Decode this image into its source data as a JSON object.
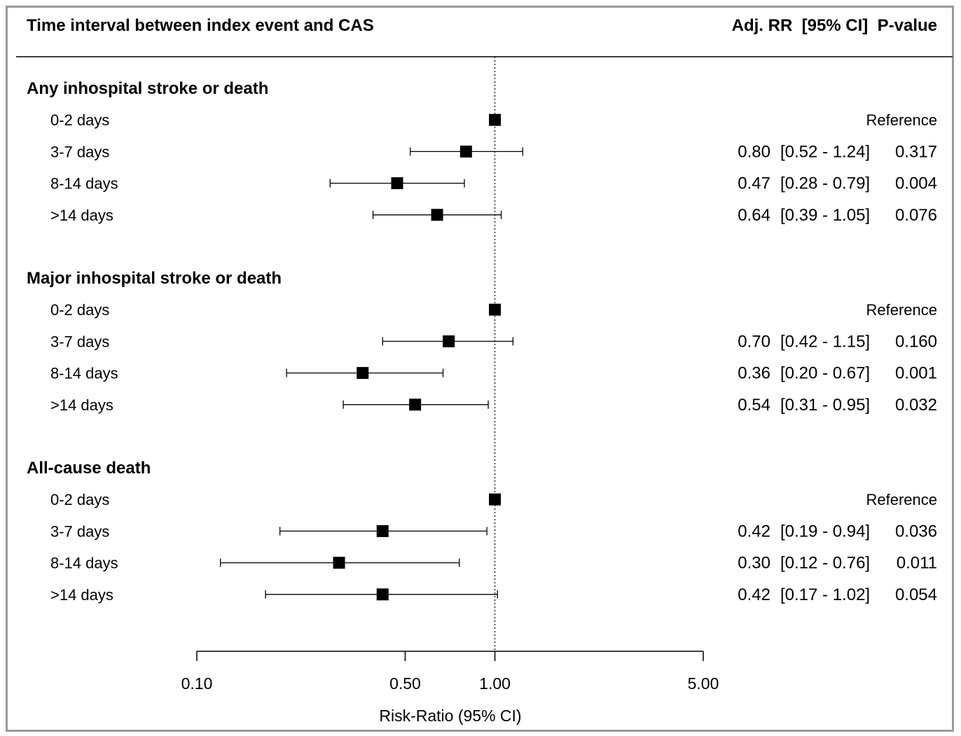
{
  "header": {
    "left_title": "Time interval between index event and CAS",
    "right_title": "Adj. RR  [95% CI]  P-value"
  },
  "chart_data": {
    "type": "forest",
    "scale": "log",
    "xlim": [
      0.1,
      5.0
    ],
    "reference_line": 1.0,
    "xticks": [
      {
        "value": 0.1,
        "label": "0.10"
      },
      {
        "value": 0.5,
        "label": "0.50"
      },
      {
        "value": 1.0,
        "label": "1.00"
      },
      {
        "value": 5.0,
        "label": "5.00"
      }
    ],
    "xlabel": "Risk-Ratio (95% CI)",
    "groups": [
      {
        "title": "Any inhospital stroke or death",
        "rows": [
          {
            "label": "0-2 days",
            "rr": 1.0,
            "lo": null,
            "hi": null,
            "rr_text": "",
            "ci_text": "",
            "p_text": "",
            "ref_text": "Reference"
          },
          {
            "label": "3-7 days",
            "rr": 0.8,
            "lo": 0.52,
            "hi": 1.24,
            "rr_text": "0.80",
            "ci_text": "[0.52 - 1.24]",
            "p_text": "0.317",
            "ref_text": ""
          },
          {
            "label": "8-14 days",
            "rr": 0.47,
            "lo": 0.28,
            "hi": 0.79,
            "rr_text": "0.47",
            "ci_text": "[0.28 - 0.79]",
            "p_text": "0.004",
            "ref_text": ""
          },
          {
            "label": ">14 days",
            "rr": 0.64,
            "lo": 0.39,
            "hi": 1.05,
            "rr_text": "0.64",
            "ci_text": "[0.39 - 1.05]",
            "p_text": "0.076",
            "ref_text": ""
          }
        ]
      },
      {
        "title": "Major inhospital stroke or death",
        "rows": [
          {
            "label": "0-2 days",
            "rr": 1.0,
            "lo": null,
            "hi": null,
            "rr_text": "",
            "ci_text": "",
            "p_text": "",
            "ref_text": "Reference"
          },
          {
            "label": "3-7 days",
            "rr": 0.7,
            "lo": 0.42,
            "hi": 1.15,
            "rr_text": "0.70",
            "ci_text": "[0.42 - 1.15]",
            "p_text": "0.160",
            "ref_text": ""
          },
          {
            "label": "8-14 days",
            "rr": 0.36,
            "lo": 0.2,
            "hi": 0.67,
            "rr_text": "0.36",
            "ci_text": "[0.20 - 0.67]",
            "p_text": "0.001",
            "ref_text": ""
          },
          {
            "label": ">14 days",
            "rr": 0.54,
            "lo": 0.31,
            "hi": 0.95,
            "rr_text": "0.54",
            "ci_text": "[0.31 - 0.95]",
            "p_text": "0.032",
            "ref_text": ""
          }
        ]
      },
      {
        "title": "All-cause death",
        "rows": [
          {
            "label": "0-2 days",
            "rr": 1.0,
            "lo": null,
            "hi": null,
            "rr_text": "",
            "ci_text": "",
            "p_text": "",
            "ref_text": "Reference"
          },
          {
            "label": "3-7 days",
            "rr": 0.42,
            "lo": 0.19,
            "hi": 0.94,
            "rr_text": "0.42",
            "ci_text": "[0.19 - 0.94]",
            "p_text": "0.036",
            "ref_text": ""
          },
          {
            "label": "8-14 days",
            "rr": 0.3,
            "lo": 0.12,
            "hi": 0.76,
            "rr_text": "0.30",
            "ci_text": "[0.12 - 0.76]",
            "p_text": "0.011",
            "ref_text": ""
          },
          {
            "label": ">14 days",
            "rr": 0.42,
            "lo": 0.17,
            "hi": 1.02,
            "rr_text": "0.42",
            "ci_text": "[0.17 - 1.02]",
            "p_text": "0.054",
            "ref_text": ""
          }
        ]
      }
    ]
  }
}
